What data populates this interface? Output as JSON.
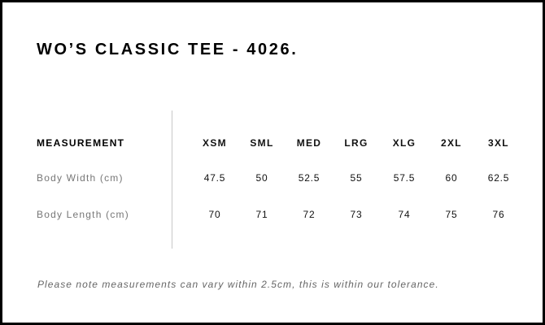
{
  "title": "WO’S CLASSIC TEE - 4026.",
  "table": {
    "header_label": "MEASUREMENT",
    "sizes": [
      "XSM",
      "SML",
      "MED",
      "LRG",
      "XLG",
      "2XL",
      "3XL"
    ],
    "rows": [
      {
        "label": "Body Width (cm)",
        "values": [
          "47.5",
          "50",
          "52.5",
          "55",
          "57.5",
          "60",
          "62.5"
        ]
      },
      {
        "label": "Body Length (cm)",
        "values": [
          "70",
          "71",
          "72",
          "73",
          "74",
          "75",
          "76"
        ]
      }
    ]
  },
  "note": "Please note measurements can vary within 2.5cm, this is within our tolerance."
}
